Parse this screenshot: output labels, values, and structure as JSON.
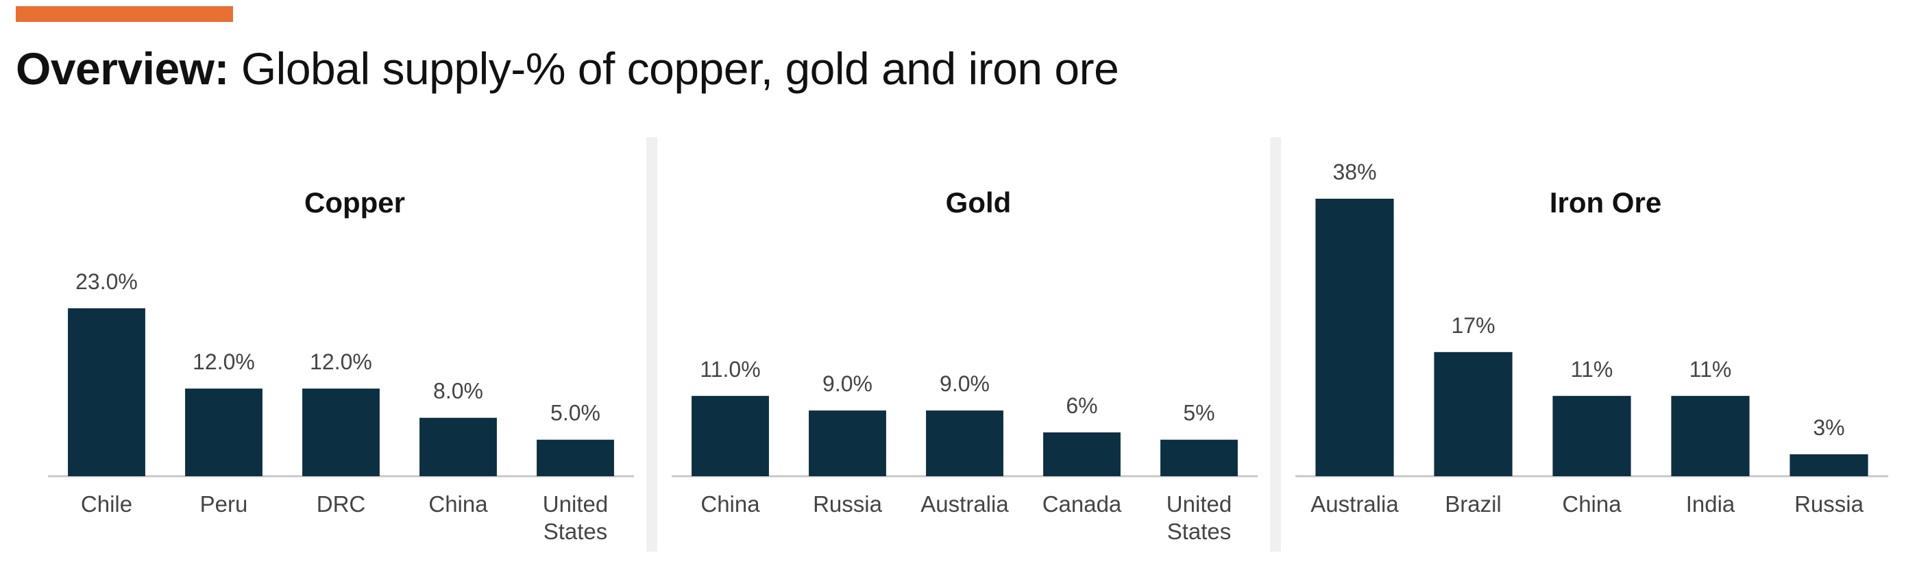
{
  "headline": {
    "bold": "Overview:",
    "rest": " Global supply-% of copper, gold and iron ore"
  },
  "colors": {
    "accent": "#e87033",
    "bar": "#0d2f42",
    "axis": "#c8c8c8",
    "divider": "#f0f0f0",
    "label": "#444444",
    "title": "#111111"
  },
  "chart_data": [
    {
      "type": "bar",
      "title": "Copper",
      "categories": [
        "Chile",
        "Peru",
        "DRC",
        "China",
        "United States"
      ],
      "values": [
        23.0,
        12.0,
        12.0,
        8.0,
        5.0
      ],
      "value_labels": [
        "23.0%",
        "12.0%",
        "12.0%",
        "8.0%",
        "5.0%"
      ],
      "xlabel": "",
      "ylabel": "",
      "unit": "%",
      "grid": false
    },
    {
      "type": "bar",
      "title": "Gold",
      "categories": [
        "China",
        "Russia",
        "Australia",
        "Canada",
        "United States"
      ],
      "values": [
        11.0,
        9.0,
        9.0,
        6,
        5
      ],
      "value_labels": [
        "11.0%",
        "9.0%",
        "9.0%",
        "6%",
        "5%"
      ],
      "xlabel": "",
      "ylabel": "",
      "unit": "%",
      "grid": false
    },
    {
      "type": "bar",
      "title": "Iron Ore",
      "categories": [
        "Australia",
        "Brazil",
        "China",
        "India",
        "Russia"
      ],
      "values": [
        38,
        17,
        11,
        11,
        3
      ],
      "value_labels": [
        "38%",
        "17%",
        "11%",
        "11%",
        "3%"
      ],
      "xlabel": "",
      "ylabel": "",
      "unit": "%",
      "grid": false
    }
  ]
}
